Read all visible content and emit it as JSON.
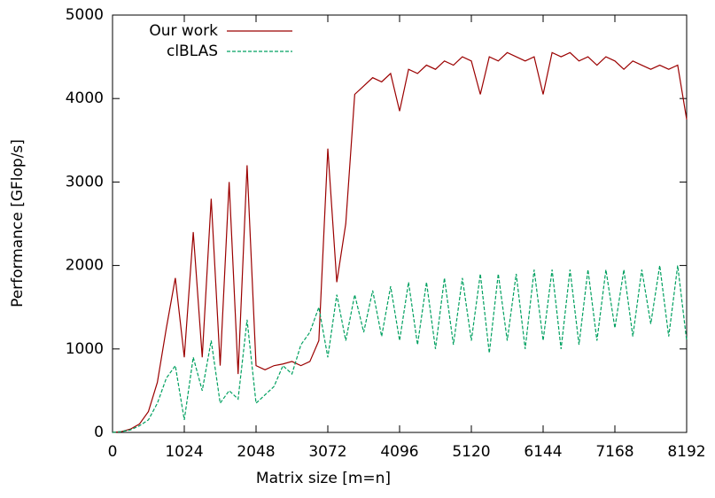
{
  "chart_data": {
    "type": "line",
    "x_label": "Matrix size [m=n]",
    "y_label": "Performance [GFlop/s]",
    "x": [
      0,
      128,
      256,
      384,
      512,
      640,
      768,
      896,
      1024,
      1152,
      1280,
      1408,
      1536,
      1664,
      1792,
      1920,
      2048,
      2176,
      2304,
      2432,
      2560,
      2688,
      2816,
      2944,
      3072,
      3200,
      3328,
      3456,
      3584,
      3712,
      3840,
      3968,
      4096,
      4224,
      4352,
      4480,
      4608,
      4736,
      4864,
      4992,
      5120,
      5248,
      5376,
      5504,
      5632,
      5760,
      5888,
      6016,
      6144,
      6272,
      6400,
      6528,
      6656,
      6784,
      6912,
      7040,
      7168,
      7296,
      7424,
      7552,
      7680,
      7808,
      7936,
      8064,
      8192
    ],
    "series": [
      {
        "name": "Our work",
        "color": "#9b0000",
        "dashed": false,
        "values": [
          0,
          10,
          40,
          100,
          250,
          600,
          1250,
          1850,
          900,
          2400,
          900,
          2800,
          800,
          3000,
          700,
          3200,
          800,
          750,
          800,
          820,
          850,
          800,
          850,
          1100,
          3400,
          1800,
          2500,
          4050,
          4150,
          4250,
          4200,
          4300,
          3850,
          4350,
          4300,
          4400,
          4350,
          4450,
          4400,
          4500,
          4450,
          4050,
          4500,
          4450,
          4550,
          4500,
          4450,
          4500,
          4050,
          4550,
          4500,
          4550,
          4450,
          4500,
          4400,
          4500,
          4450,
          4350,
          4450,
          4400,
          4350,
          4400,
          4350,
          4400,
          3750
        ]
      },
      {
        "name": "clBLAS",
        "color": "#00a060",
        "dashed": true,
        "values": [
          0,
          10,
          30,
          80,
          150,
          350,
          650,
          800,
          150,
          900,
          500,
          1100,
          350,
          500,
          400,
          1350,
          350,
          450,
          550,
          800,
          700,
          1050,
          1200,
          1500,
          900,
          1650,
          1100,
          1650,
          1200,
          1700,
          1150,
          1750,
          1100,
          1800,
          1050,
          1800,
          1000,
          1850,
          1050,
          1850,
          1100,
          1900,
          950,
          1900,
          1100,
          1900,
          1000,
          1950,
          1100,
          1950,
          1000,
          1950,
          1050,
          1950,
          1100,
          1950,
          1250,
          1950,
          1150,
          1950,
          1300,
          2000,
          1150,
          2000,
          1100
        ]
      }
    ],
    "xlim": [
      0,
      8192
    ],
    "xticks": [
      0,
      1024,
      2048,
      3072,
      4096,
      5120,
      6144,
      7168,
      8192
    ],
    "ylim": [
      0,
      5000
    ],
    "yticks": [
      0,
      1000,
      2000,
      3000,
      4000,
      5000
    ],
    "grid": false,
    "legend": "top-left"
  }
}
